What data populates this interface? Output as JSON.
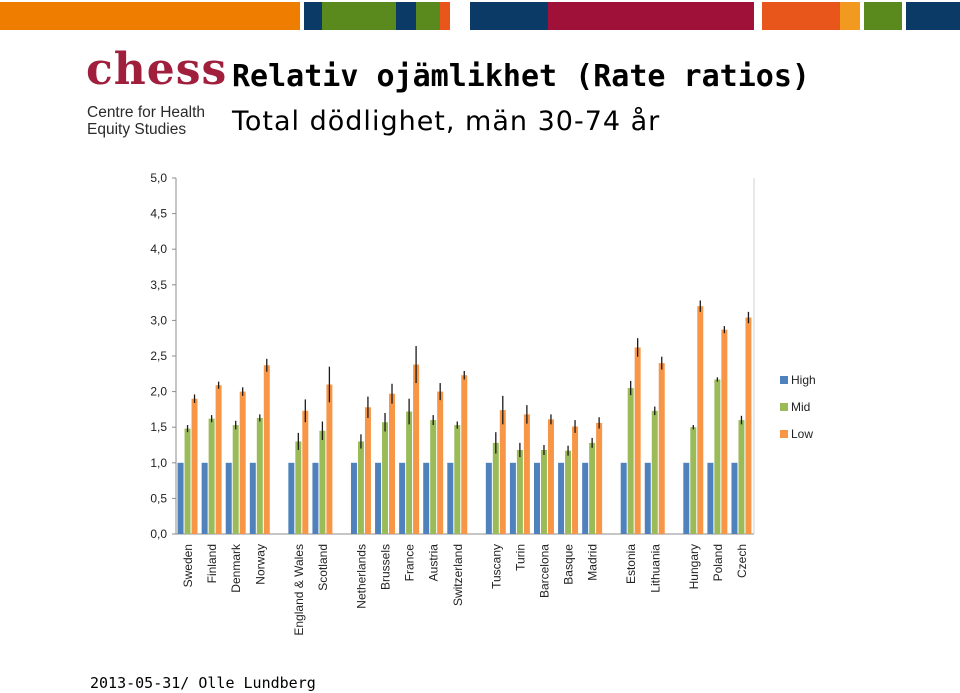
{
  "header": {
    "band_colors": [
      "#ee7d00",
      "#ffffff",
      "#0b3a66",
      "#5a8a1e",
      "#0b3a66",
      "#5a8a1e",
      "#e9561c",
      "#ffffff",
      "#0b3a66",
      "#a0113a",
      "#ffffff",
      "#e9561c",
      "#f19a1f",
      "#ffffff",
      "#5a8a1e",
      "#ffffff",
      "#0b3a66"
    ]
  },
  "logo": {
    "mark": "chess",
    "line1": "Centre for Health",
    "line2": "Equity Studies",
    "color": "#a01f3c"
  },
  "title": "Relativ ojämlikhet (Rate ratios)",
  "subtitle": "Total dödlighet, män 30-74 år",
  "footer": "2013-05-31/ Olle Lundberg",
  "chart_data": {
    "type": "bar",
    "ylim": [
      0,
      5
    ],
    "yticks": [
      "0,0",
      "0,5",
      "1,0",
      "1,5",
      "2,0",
      "2,5",
      "3,0",
      "3,5",
      "4,0",
      "4,5",
      "5,0"
    ],
    "grid": false,
    "legend_position": "right",
    "colors": {
      "High": "#4f81bd",
      "Mid": "#9bbb59",
      "Low": "#f79646"
    },
    "categories": [
      "Sweden",
      "Finland",
      "Denmark",
      "Norway",
      "England & Wales",
      "Scotland",
      "Netherlands",
      "Brussels",
      "France",
      "Austria",
      "Switzerland",
      "Tuscany",
      "Turin",
      "Barcelona",
      "Basque",
      "Madrid",
      "Estonia",
      "Lithuania",
      "Hungary",
      "Poland",
      "Czech"
    ],
    "groups": [
      4,
      2,
      5,
      5,
      2,
      3
    ],
    "series": [
      {
        "name": "High",
        "values": [
          1.0,
          1.0,
          1.0,
          1.0,
          1.0,
          1.0,
          1.0,
          1.0,
          1.0,
          1.0,
          1.0,
          1.0,
          1.0,
          1.0,
          1.0,
          1.0,
          1.0,
          1.0,
          1.0,
          1.0,
          1.0
        ]
      },
      {
        "name": "Mid",
        "values": [
          1.48,
          1.62,
          1.53,
          1.63,
          1.3,
          1.45,
          1.3,
          1.57,
          1.72,
          1.6,
          1.53,
          1.28,
          1.18,
          1.18,
          1.17,
          1.28,
          2.05,
          1.73,
          1.5,
          2.17,
          1.6
        ]
      },
      {
        "name": "Low",
        "values": [
          1.9,
          2.09,
          2.0,
          2.37,
          1.73,
          2.1,
          1.78,
          1.97,
          2.38,
          2.0,
          2.23,
          1.74,
          1.68,
          1.61,
          1.51,
          1.56,
          2.62,
          2.4,
          3.2,
          2.87,
          3.04
        ]
      }
    ],
    "error_bars": {
      "Mid": [
        0.05,
        0.05,
        0.06,
        0.05,
        0.12,
        0.13,
        0.1,
        0.13,
        0.18,
        0.07,
        0.05,
        0.15,
        0.1,
        0.07,
        0.07,
        0.07,
        0.1,
        0.06,
        0.03,
        0.03,
        0.06
      ],
      "Low": [
        0.06,
        0.05,
        0.06,
        0.09,
        0.16,
        0.25,
        0.15,
        0.14,
        0.26,
        0.12,
        0.06,
        0.2,
        0.13,
        0.07,
        0.09,
        0.08,
        0.13,
        0.09,
        0.08,
        0.05,
        0.08
      ]
    }
  }
}
